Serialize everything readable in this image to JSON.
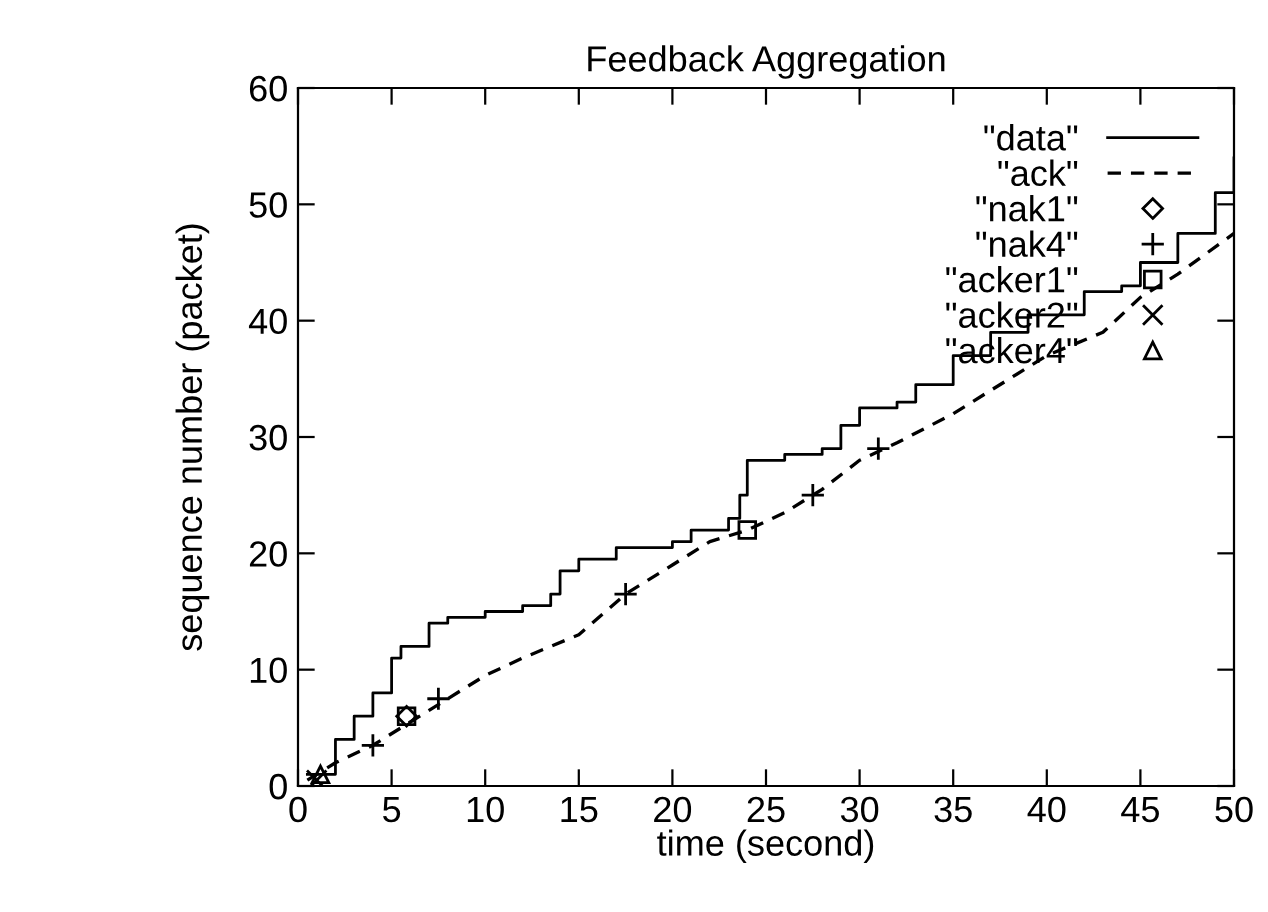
{
  "chart_data": {
    "type": "line",
    "title": "Feedback Aggregation",
    "xlabel": "time (second)",
    "ylabel": "sequence number (packet)",
    "xlim": [
      0,
      50
    ],
    "ylim": [
      0,
      60
    ],
    "xticks": [
      0,
      5,
      10,
      15,
      20,
      25,
      30,
      35,
      40,
      45,
      50
    ],
    "yticks": [
      0,
      10,
      20,
      30,
      40,
      50,
      60
    ],
    "grid": false,
    "legend": "top right",
    "series": [
      {
        "name": "\"data\"",
        "type": "step",
        "color": "#000000",
        "line_style": "solid",
        "marker": "none",
        "x": [
          0.5,
          2,
          3,
          4,
          5,
          5.5,
          7,
          8,
          10,
          12,
          13.5,
          14,
          15,
          17,
          20,
          21,
          23,
          23.6,
          24,
          26,
          28,
          29,
          30,
          32,
          33,
          35,
          37,
          39,
          42,
          44,
          45,
          47,
          49,
          50
        ],
        "values": [
          1,
          4,
          6,
          8,
          11,
          12,
          14,
          14.5,
          15,
          15.5,
          16.5,
          18.5,
          19.5,
          20.5,
          21,
          22,
          23,
          25,
          28,
          28.5,
          29,
          31,
          32.5,
          33,
          34.5,
          37,
          39,
          40.5,
          42.5,
          43,
          45,
          47.5,
          51,
          54
        ]
      },
      {
        "name": "\"ack\"",
        "color": "#000000",
        "line_style": "dashed",
        "marker": "none",
        "x": [
          0.5,
          2,
          4,
          6,
          8,
          10,
          12,
          15,
          17.5,
          20,
          22,
          24,
          26,
          28,
          30,
          32,
          35,
          38,
          40,
          43,
          45,
          47,
          50
        ],
        "values": [
          0.5,
          2,
          3.5,
          5.5,
          7.5,
          9.5,
          11,
          13,
          16.5,
          19,
          21,
          22,
          23.5,
          25.5,
          28,
          29.5,
          32,
          35,
          37,
          39,
          42,
          44,
          47.5
        ]
      },
      {
        "name": "\"nak1\"",
        "type": "scatter",
        "color": "#000000",
        "marker": "diamond",
        "x": [
          5.8
        ],
        "values": [
          6
        ]
      },
      {
        "name": "\"nak4\"",
        "type": "scatter",
        "color": "#000000",
        "marker": "cross",
        "x": [
          4,
          7.5,
          17.5,
          27.5,
          31
        ],
        "values": [
          3.5,
          7.5,
          16.5,
          25,
          29
        ]
      },
      {
        "name": "\"acker1\"",
        "type": "scatter",
        "color": "#000000",
        "marker": "square",
        "x": [
          5.8,
          24
        ],
        "values": [
          6,
          22
        ]
      },
      {
        "name": "\"acker2\"",
        "type": "scatter",
        "color": "#000000",
        "marker": "x",
        "x": [
          1
        ],
        "values": [
          0.5
        ]
      },
      {
        "name": "\"acker4\"",
        "type": "scatter",
        "color": "#000000",
        "marker": "triangle",
        "x": [
          1.2
        ],
        "values": [
          1
        ]
      }
    ]
  }
}
